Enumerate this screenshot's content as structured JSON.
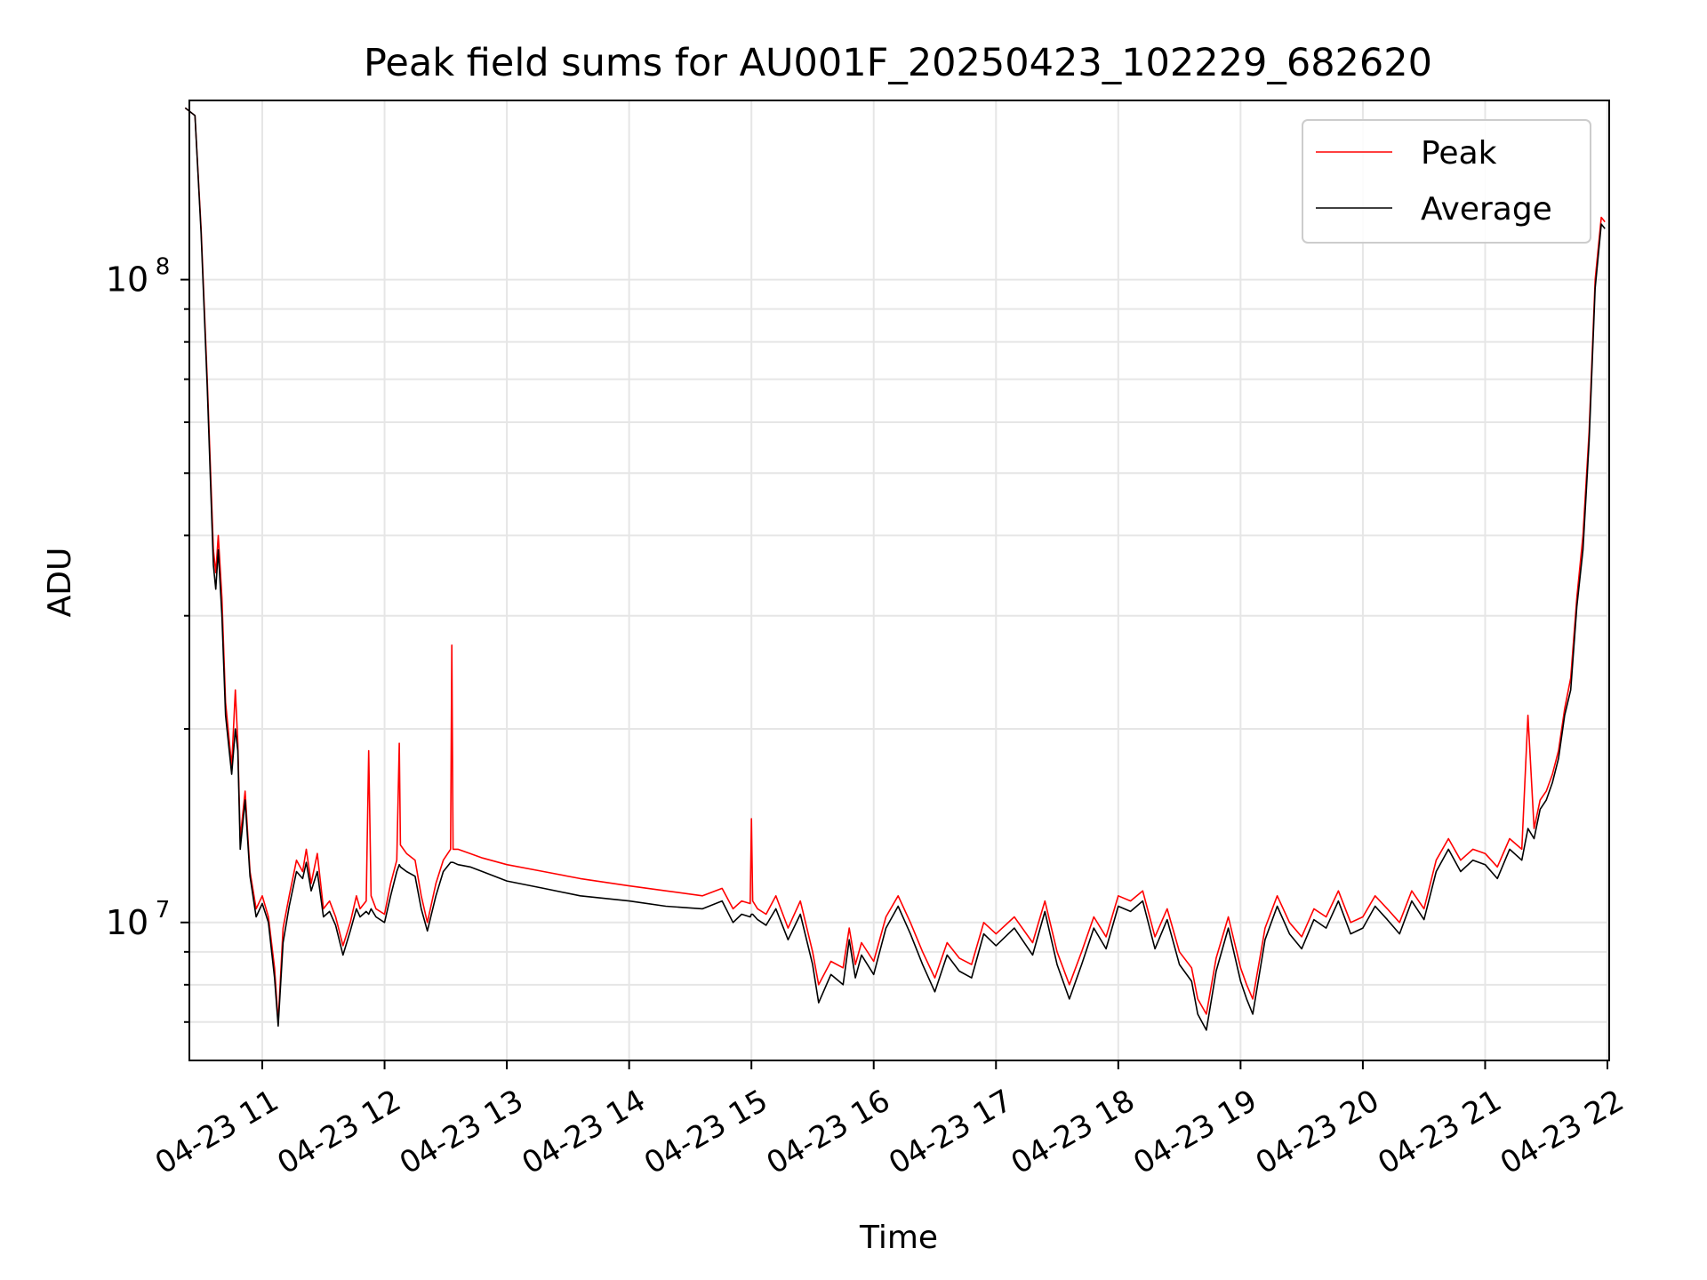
{
  "chart_data": {
    "type": "line",
    "title": "Peak field sums for AU001F_20250423_102229_682620",
    "xlabel": "Time",
    "ylabel": "ADU",
    "x_axis": {
      "type": "datetime",
      "min": "2025-04-23 10:22",
      "max": "2025-04-23 22:00",
      "tick_labels": [
        "04-23 11",
        "04-23 12",
        "04-23 13",
        "04-23 14",
        "04-23 15",
        "04-23 16",
        "04-23 17",
        "04-23 18",
        "04-23 19",
        "04-23 20",
        "04-23 21",
        "04-23 22"
      ],
      "tick_hours": [
        11,
        12,
        13,
        14,
        15,
        16,
        17,
        18,
        19,
        20,
        21,
        22
      ]
    },
    "y_axis": {
      "scale": "log",
      "ylim": [
        6100000,
        190000000
      ],
      "major_ticks": [
        {
          "value": 10000000,
          "base": "10",
          "exp": "7"
        },
        {
          "value": 100000000,
          "base": "10",
          "exp": "8"
        }
      ]
    },
    "grid": true,
    "legend": {
      "placement": "top-right"
    },
    "series": [
      {
        "name": "Peak",
        "color": "#ff0000",
        "x_hours": [
          10.37,
          10.45,
          10.5,
          10.55,
          10.6,
          10.62,
          10.64,
          10.67,
          10.7,
          10.75,
          10.78,
          10.8,
          10.82,
          10.86,
          10.9,
          10.95,
          11.0,
          11.05,
          11.1,
          11.13,
          11.17,
          11.22,
          11.28,
          11.33,
          11.36,
          11.4,
          11.45,
          11.5,
          11.55,
          11.6,
          11.66,
          11.72,
          11.77,
          11.8,
          11.85,
          11.87,
          11.89,
          11.93,
          12.0,
          12.05,
          12.1,
          12.12,
          12.13,
          12.18,
          12.25,
          12.3,
          12.35,
          12.42,
          12.48,
          12.54,
          12.55,
          12.56,
          12.6,
          12.7,
          12.8,
          13.0,
          13.3,
          13.6,
          14.0,
          14.3,
          14.6,
          14.76,
          14.85,
          14.92,
          14.99,
          15.0,
          15.01,
          15.05,
          15.12,
          15.2,
          15.3,
          15.4,
          15.5,
          15.55,
          15.65,
          15.75,
          15.8,
          15.85,
          15.9,
          16.0,
          16.1,
          16.2,
          16.3,
          16.4,
          16.5,
          16.6,
          16.7,
          16.8,
          16.9,
          17.0,
          17.15,
          17.3,
          17.4,
          17.5,
          17.6,
          17.7,
          17.8,
          17.9,
          18.0,
          18.1,
          18.2,
          18.3,
          18.4,
          18.5,
          18.6,
          18.65,
          18.72,
          18.8,
          18.9,
          19.0,
          19.05,
          19.1,
          19.2,
          19.3,
          19.4,
          19.5,
          19.6,
          19.7,
          19.8,
          19.9,
          20.0,
          20.1,
          20.2,
          20.3,
          20.4,
          20.5,
          20.6,
          20.7,
          20.8,
          20.9,
          21.0,
          21.1,
          21.2,
          21.3,
          21.35,
          21.4,
          21.45,
          21.5,
          21.55,
          21.6,
          21.65,
          21.7,
          21.75,
          21.8,
          21.85,
          21.9,
          21.95,
          21.98
        ],
        "y": [
          185000000,
          180000000,
          120000000,
          70000000,
          38000000,
          35000000,
          40000000,
          32000000,
          22000000,
          17500000,
          23000000,
          19000000,
          13500000,
          16000000,
          12000000,
          10500000,
          11000000,
          10200000,
          8500000,
          7000000,
          9800000,
          11000000,
          12500000,
          12000000,
          13000000,
          11500000,
          12800000,
          10500000,
          10800000,
          10200000,
          9200000,
          10000000,
          11000000,
          10500000,
          10800000,
          18500000,
          11000000,
          10500000,
          10300000,
          11500000,
          12500000,
          19000000,
          13200000,
          12800000,
          12500000,
          11000000,
          10000000,
          11500000,
          12500000,
          13000000,
          27000000,
          13000000,
          13000000,
          12800000,
          12600000,
          12300000,
          12000000,
          11700000,
          11400000,
          11200000,
          11000000,
          11300000,
          10500000,
          10800000,
          10700000,
          14500000,
          10800000,
          10500000,
          10300000,
          11000000,
          9800000,
          10800000,
          9000000,
          8000000,
          8700000,
          8500000,
          9800000,
          8600000,
          9300000,
          8700000,
          10200000,
          11000000,
          10000000,
          9000000,
          8200000,
          9300000,
          8800000,
          8600000,
          10000000,
          9600000,
          10200000,
          9300000,
          10800000,
          9000000,
          8000000,
          9000000,
          10200000,
          9500000,
          11000000,
          10800000,
          11200000,
          9500000,
          10500000,
          9000000,
          8500000,
          7600000,
          7200000,
          8800000,
          10200000,
          8500000,
          8000000,
          7600000,
          9800000,
          11000000,
          10000000,
          9500000,
          10500000,
          10200000,
          11200000,
          10000000,
          10200000,
          11000000,
          10500000,
          10000000,
          11200000,
          10500000,
          12500000,
          13500000,
          12500000,
          13000000,
          12800000,
          12200000,
          13500000,
          13000000,
          21000000,
          14000000,
          15500000,
          16000000,
          17000000,
          18500000,
          21500000,
          24000000,
          32000000,
          40000000,
          58000000,
          100000000,
          125000000,
          123000000
        ]
      },
      {
        "name": "Average",
        "color": "#000000",
        "x_hours": [
          10.37,
          10.45,
          10.5,
          10.55,
          10.6,
          10.62,
          10.64,
          10.67,
          10.7,
          10.75,
          10.78,
          10.8,
          10.82,
          10.86,
          10.9,
          10.95,
          11.0,
          11.05,
          11.1,
          11.13,
          11.17,
          11.22,
          11.28,
          11.33,
          11.36,
          11.4,
          11.45,
          11.5,
          11.55,
          11.6,
          11.66,
          11.72,
          11.77,
          11.8,
          11.85,
          11.87,
          11.89,
          11.93,
          12.0,
          12.05,
          12.1,
          12.12,
          12.13,
          12.18,
          12.25,
          12.3,
          12.35,
          12.42,
          12.48,
          12.54,
          12.55,
          12.56,
          12.6,
          12.7,
          12.8,
          13.0,
          13.3,
          13.6,
          14.0,
          14.3,
          14.6,
          14.76,
          14.85,
          14.92,
          14.99,
          15.0,
          15.01,
          15.05,
          15.12,
          15.2,
          15.3,
          15.4,
          15.5,
          15.55,
          15.65,
          15.75,
          15.8,
          15.85,
          15.9,
          16.0,
          16.1,
          16.2,
          16.3,
          16.4,
          16.5,
          16.6,
          16.7,
          16.8,
          16.9,
          17.0,
          17.15,
          17.3,
          17.4,
          17.5,
          17.6,
          17.7,
          17.8,
          17.9,
          18.0,
          18.1,
          18.2,
          18.3,
          18.4,
          18.5,
          18.6,
          18.65,
          18.72,
          18.8,
          18.9,
          19.0,
          19.05,
          19.1,
          19.2,
          19.3,
          19.4,
          19.5,
          19.6,
          19.7,
          19.8,
          19.9,
          20.0,
          20.1,
          20.2,
          20.3,
          20.4,
          20.5,
          20.6,
          20.7,
          20.8,
          20.9,
          21.0,
          21.1,
          21.2,
          21.3,
          21.35,
          21.4,
          21.45,
          21.5,
          21.55,
          21.6,
          21.65,
          21.7,
          21.75,
          21.8,
          21.85,
          21.9,
          21.95,
          21.98
        ],
        "y": [
          185000000,
          180000000,
          118000000,
          68000000,
          36000000,
          33000000,
          38000000,
          30000000,
          21000000,
          17000000,
          20000000,
          18500000,
          13000000,
          15500000,
          11800000,
          10200000,
          10700000,
          10000000,
          8200000,
          6900000,
          9300000,
          10600000,
          12000000,
          11700000,
          12400000,
          11200000,
          12000000,
          10200000,
          10400000,
          9900000,
          8900000,
          9700000,
          10500000,
          10200000,
          10400000,
          10300000,
          10500000,
          10200000,
          10000000,
          11000000,
          12000000,
          12300000,
          12200000,
          12000000,
          11800000,
          10500000,
          9700000,
          11000000,
          12000000,
          12400000,
          12400000,
          12400000,
          12300000,
          12200000,
          12000000,
          11600000,
          11300000,
          11000000,
          10800000,
          10600000,
          10500000,
          10800000,
          10000000,
          10300000,
          10200000,
          10300000,
          10300000,
          10100000,
          9900000,
          10500000,
          9400000,
          10300000,
          8600000,
          7500000,
          8300000,
          8000000,
          9400000,
          8200000,
          8900000,
          8300000,
          9800000,
          10600000,
          9600000,
          8600000,
          7800000,
          8900000,
          8400000,
          8200000,
          9600000,
          9200000,
          9800000,
          8900000,
          10400000,
          8600000,
          7600000,
          8600000,
          9800000,
          9100000,
          10600000,
          10400000,
          10800000,
          9100000,
          10100000,
          8600000,
          8100000,
          7200000,
          6800000,
          8400000,
          9800000,
          8100000,
          7600000,
          7200000,
          9400000,
          10600000,
          9600000,
          9100000,
          10100000,
          9800000,
          10800000,
          9600000,
          9800000,
          10600000,
          10100000,
          9600000,
          10800000,
          10100000,
          12000000,
          13000000,
          12000000,
          12500000,
          12300000,
          11700000,
          13000000,
          12500000,
          14000000,
          13500000,
          15000000,
          15500000,
          16500000,
          18000000,
          21000000,
          23000000,
          31000000,
          38000000,
          56000000,
          97000000,
          122000000,
          120000000
        ]
      }
    ]
  }
}
